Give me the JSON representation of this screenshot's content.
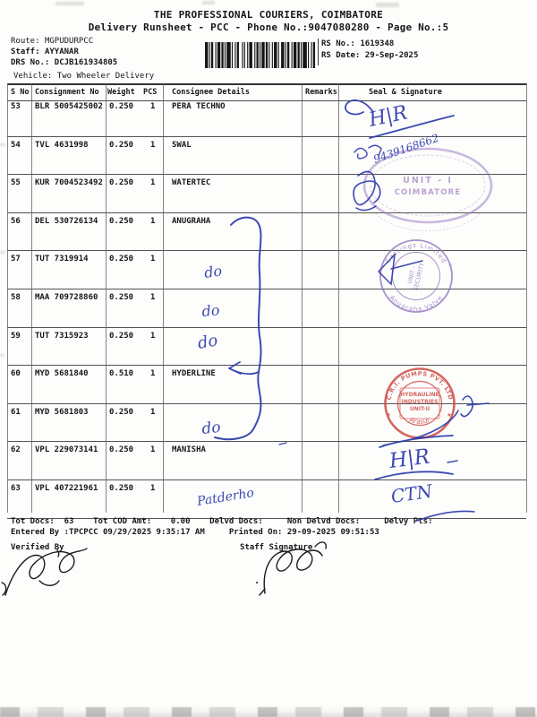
{
  "header": {
    "title": "THE PROFESSIONAL COURIERS, COIMBATORE",
    "subtitle": "Delivery Runsheet - PCC - Phone No.:9047080280 - Page No.:5",
    "route_label": "Route:",
    "route_value": "MGPUDURPCC",
    "staff_label": "Staff:",
    "staff_value": "AYYANAR",
    "drs_label": "DRS No.:",
    "drs_value": "DCJB161934805",
    "vehicle_label": "Vehicle:",
    "vehicle_value": "Two Wheeler Delivery",
    "rs_no_label": "RS No.:",
    "rs_no_value": "1619348",
    "rs_date_label": "RS Date:",
    "rs_date_value": "29-Sep-2025"
  },
  "table": {
    "headers": {
      "s_no": "S No",
      "consignment": "Consignment No",
      "weight": "Weight",
      "pcs": "PCS",
      "consignee": "Consignee Details",
      "remarks": "Remarks",
      "seal": "Seal & Signature"
    },
    "rows": [
      {
        "s_no": "53",
        "consignment": "BLR 5005425002",
        "weight": "0.250",
        "pcs": "1",
        "consignee": "PERA TECHNO",
        "remarks": ""
      },
      {
        "s_no": "54",
        "consignment": "TVL 4631998",
        "weight": "0.250",
        "pcs": "1",
        "consignee": "SWAL",
        "remarks": ""
      },
      {
        "s_no": "55",
        "consignment": "KUR 7004523492",
        "weight": "0.250",
        "pcs": "1",
        "consignee": "WATERTEC",
        "remarks": ""
      },
      {
        "s_no": "56",
        "consignment": "DEL 530726134",
        "weight": "0.250",
        "pcs": "1",
        "consignee": "ANUGRAHA",
        "remarks": ""
      },
      {
        "s_no": "57",
        "consignment": "TUT 7319914",
        "weight": "0.250",
        "pcs": "1",
        "consignee": "",
        "remarks": ""
      },
      {
        "s_no": "58",
        "consignment": "MAA 709728860",
        "weight": "0.250",
        "pcs": "1",
        "consignee": "",
        "remarks": ""
      },
      {
        "s_no": "59",
        "consignment": "TUT 7315923",
        "weight": "0.250",
        "pcs": "1",
        "consignee": "",
        "remarks": ""
      },
      {
        "s_no": "60",
        "consignment": "MYD 5681840",
        "weight": "0.510",
        "pcs": "1",
        "consignee": "HYDERLINE",
        "remarks": ""
      },
      {
        "s_no": "61",
        "consignment": "MYD 5681803",
        "weight": "0.250",
        "pcs": "1",
        "consignee": "",
        "remarks": ""
      },
      {
        "s_no": "62",
        "consignment": "VPL 229073141",
        "weight": "0.250",
        "pcs": "1",
        "consignee": "MANISHA",
        "remarks": ""
      },
      {
        "s_no": "63",
        "consignment": "VPL 407221961",
        "weight": "0.250",
        "pcs": "1",
        "consignee": "",
        "remarks": ""
      }
    ]
  },
  "footer": {
    "totals_line": "Tot Docs:  63    Tot COD Amt:    0.00    Delvd Docs:     Non Delvd Docs:     Delvy Pts:",
    "entered_line": "Entered By :TPCPCC 09/29/2025 9:35:17 AM     Printed On: 29-09-2025 09:51:53",
    "verified_by_label": "Verified By",
    "staff_signature_label": "Staff Signature"
  },
  "stamps": {
    "unit1_oval": {
      "line1": "UNIT - I",
      "line2": "COIMBATORE",
      "color": "#9a7cc6"
    },
    "anugraha_round": {
      "arc_top": "Castings Limited",
      "arc_bottom": "Anugraha Valve",
      "inner_top": "UNIT -",
      "inner_bottom": "SECURITY",
      "star": "*",
      "color": "#8f72bc"
    },
    "cri_round": {
      "arc_top": "C.R.I. PUMPS PVT. LTD",
      "arc_bottom": "Arasur",
      "inner_line1": "HYDRAULINE",
      "inner_line2": "INDUSTRIES",
      "inner_line3": "UNIT-II",
      "star_left": "★",
      "star_right": "★",
      "color": "#cd4b45"
    }
  },
  "handwriting": {
    "ink_color": "#2c3aaa",
    "row53_initials": "H|R",
    "phone_number": "9439168662",
    "ditto1": "do",
    "ditto2": "do",
    "ditto3": "do",
    "ditto4": "do",
    "row62_initials": "H|R",
    "row63_initials": "CTN",
    "row63_note": "Patderho"
  }
}
